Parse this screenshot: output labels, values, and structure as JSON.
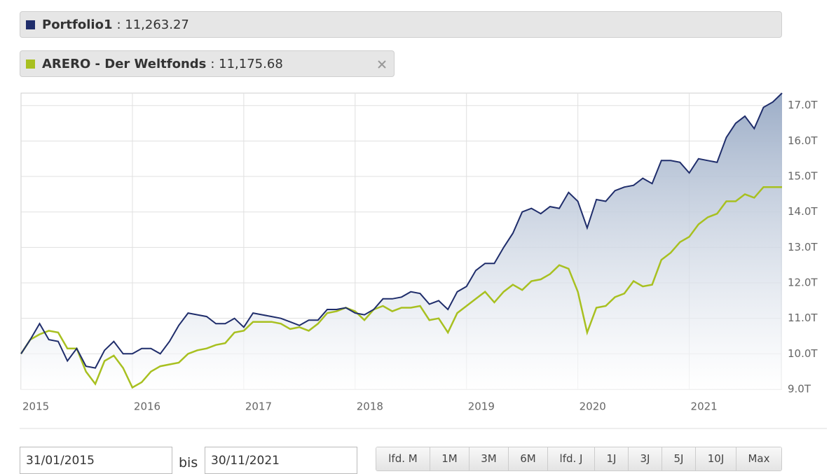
{
  "chart_data": {
    "type": "line",
    "categories": [
      "2015",
      null,
      null,
      null,
      null,
      null,
      null,
      null,
      null,
      null,
      null,
      null,
      "2016",
      null,
      null,
      null,
      null,
      null,
      null,
      null,
      null,
      null,
      null,
      null,
      "2017",
      null,
      null,
      null,
      null,
      null,
      null,
      null,
      null,
      null,
      null,
      null,
      "2018",
      null,
      null,
      null,
      null,
      null,
      null,
      null,
      null,
      null,
      null,
      null,
      "2019",
      null,
      null,
      null,
      null,
      null,
      null,
      null,
      null,
      null,
      null,
      null,
      "2020",
      null,
      null,
      null,
      null,
      null,
      null,
      null,
      null,
      null,
      null,
      null,
      "2021",
      null,
      null,
      null,
      null,
      null,
      null,
      null,
      null,
      null,
      null
    ],
    "series": [
      {
        "name": "Portfolio1",
        "legend_value": "11,263.27",
        "color": "#1f2d6b",
        "fill": true,
        "values": [
          10000,
          10400,
          10850,
          10400,
          10350,
          9800,
          10150,
          9650,
          9600,
          10100,
          10350,
          10000,
          10000,
          10150,
          10150,
          10000,
          10350,
          10800,
          11150,
          11100,
          11050,
          10850,
          10850,
          11000,
          10750,
          11150,
          11100,
          11050,
          11000,
          10900,
          10800,
          10950,
          10950,
          11250,
          11250,
          11300,
          11150,
          11100,
          11250,
          11550,
          11550,
          11600,
          11750,
          11700,
          11400,
          11500,
          11250,
          11750,
          11900,
          12350,
          12550,
          12550,
          13000,
          13400,
          14000,
          14100,
          13950,
          14150,
          14100,
          14550,
          14300,
          13550,
          14350,
          14300,
          14600,
          14700,
          14750,
          14950,
          14800,
          15450,
          15450,
          15400,
          15100,
          15500,
          15450,
          15400,
          16100,
          16500,
          16700,
          16350,
          16950,
          17100,
          17350
        ]
      },
      {
        "name": "ARERO - Der Weltfonds",
        "legend_value": "11,175.68",
        "color": "#a8c020",
        "fill": false,
        "values": [
          10000,
          10400,
          10550,
          10650,
          10600,
          10150,
          10150,
          9500,
          9150,
          9800,
          9950,
          9600,
          9050,
          9200,
          9500,
          9650,
          9700,
          9750,
          10000,
          10100,
          10150,
          10250,
          10300,
          10600,
          10650,
          10900,
          10900,
          10900,
          10850,
          10700,
          10750,
          10650,
          10850,
          11150,
          11200,
          11300,
          11200,
          10950,
          11250,
          11350,
          11200,
          11300,
          11300,
          11350,
          10950,
          11000,
          10600,
          11150,
          11350,
          11550,
          11750,
          11450,
          11750,
          11950,
          11800,
          12050,
          12100,
          12250,
          12500,
          12400,
          11750,
          10600,
          11300,
          11350,
          11600,
          11700,
          12050,
          11900,
          11950,
          12650,
          12850,
          13150,
          13300,
          13650,
          13850,
          13950,
          14300,
          14300,
          14500,
          14400,
          14700,
          14700,
          14700
        ]
      }
    ],
    "ylim": [
      9000,
      17350
    ],
    "yticks": [
      {
        "value": 9000,
        "label": "9.0T"
      },
      {
        "value": 10000,
        "label": "10.0T"
      },
      {
        "value": 11000,
        "label": "11.0T"
      },
      {
        "value": 12000,
        "label": "12.0T"
      },
      {
        "value": 13000,
        "label": "13.0T"
      },
      {
        "value": 14000,
        "label": "14.0T"
      },
      {
        "value": 15000,
        "label": "15.0T"
      },
      {
        "value": 16000,
        "label": "16.0T"
      },
      {
        "value": 17000,
        "label": "17.0T"
      }
    ],
    "grid": true
  },
  "controls": {
    "from": "31/01/2015",
    "separator": "bis",
    "to": "30/11/2021",
    "ranges": [
      "lfd. M",
      "1M",
      "3M",
      "6M",
      "lfd. J",
      "1J",
      "3J",
      "5J",
      "10J",
      "Max"
    ]
  }
}
